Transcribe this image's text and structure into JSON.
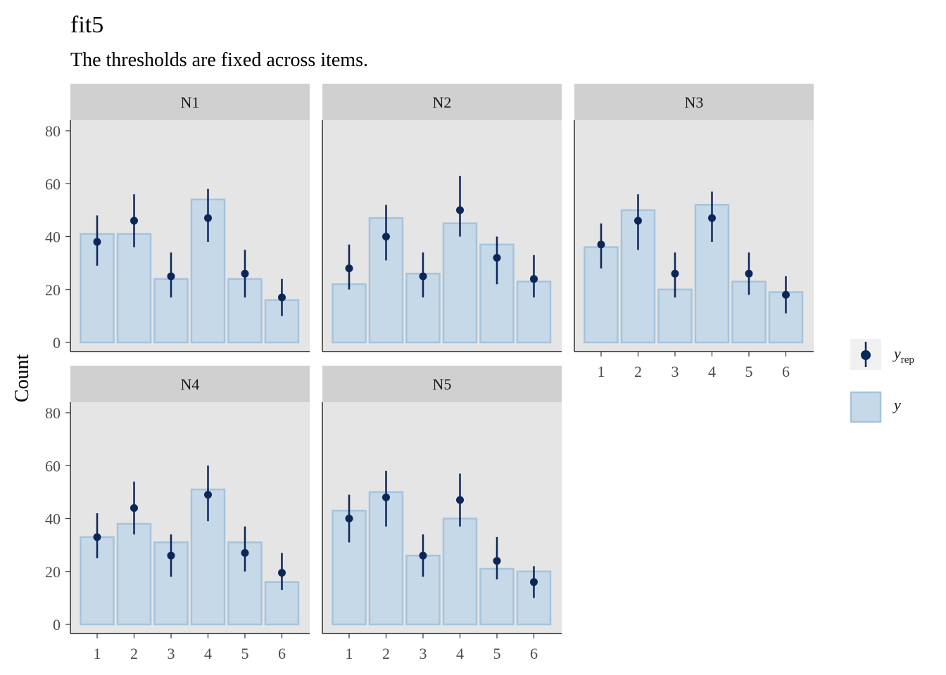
{
  "chart_data": {
    "type": "bar",
    "title": "fit5",
    "subtitle": "The thresholds are fixed across items.",
    "ylabel": "Count",
    "xlabel": "",
    "categories": [
      "1",
      "2",
      "3",
      "4",
      "5",
      "6"
    ],
    "ylim": [
      0,
      84
    ],
    "yticks": [
      "0",
      "20",
      "40",
      "60",
      "80"
    ],
    "legend": {
      "position": "right",
      "entries": [
        {
          "symbol": "point-interval",
          "label_main": "y",
          "label_sub": "rep"
        },
        {
          "symbol": "bar",
          "label_main": "y",
          "label_sub": ""
        }
      ]
    },
    "colors": {
      "bar_fill": "#c6d9e8",
      "bar_stroke": "#a6c3dc",
      "point": "#0b2659",
      "panel_bg": "#e5e5e5",
      "strip_bg": "#d0d0d0"
    },
    "panels": [
      {
        "name": "N1",
        "y": [
          41,
          41,
          24,
          54,
          24,
          16
        ],
        "y_rep": [
          38,
          46,
          25,
          47,
          26,
          17
        ],
        "y_rep_low": [
          29,
          36,
          17,
          38,
          17,
          10
        ],
        "y_rep_high": [
          48,
          56,
          34,
          58,
          35,
          24
        ]
      },
      {
        "name": "N2",
        "y": [
          22,
          47,
          26,
          45,
          37,
          23
        ],
        "y_rep": [
          28,
          40,
          25,
          50,
          32,
          24
        ],
        "y_rep_low": [
          20,
          31,
          17,
          40,
          22,
          17
        ],
        "y_rep_high": [
          37,
          52,
          34,
          63,
          40,
          33
        ]
      },
      {
        "name": "N3",
        "y": [
          36,
          50,
          20,
          52,
          23,
          19
        ],
        "y_rep": [
          37,
          46,
          26,
          47,
          26,
          18
        ],
        "y_rep_low": [
          28,
          35,
          17,
          38,
          18,
          11
        ],
        "y_rep_high": [
          45,
          56,
          34,
          57,
          34,
          25
        ]
      },
      {
        "name": "N4",
        "y": [
          33,
          38,
          31,
          51,
          31,
          16
        ],
        "y_rep": [
          33,
          44,
          26,
          49,
          27,
          19.5
        ],
        "y_rep_low": [
          25,
          34,
          18,
          39,
          20,
          13
        ],
        "y_rep_high": [
          42,
          54,
          34,
          60,
          37,
          27
        ]
      },
      {
        "name": "N5",
        "y": [
          43,
          50,
          26,
          40,
          21,
          20
        ],
        "y_rep": [
          40,
          48,
          26,
          47,
          24,
          16
        ],
        "y_rep_low": [
          31,
          37,
          18,
          37,
          17,
          10
        ],
        "y_rep_high": [
          49,
          58,
          34,
          57,
          33,
          22
        ]
      }
    ]
  }
}
